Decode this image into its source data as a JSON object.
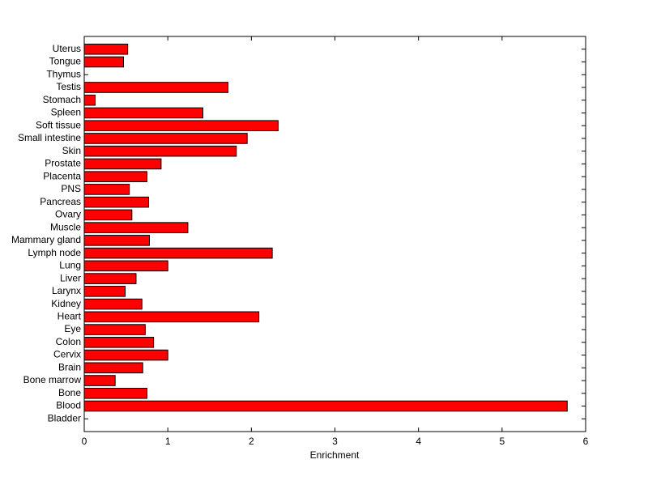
{
  "chart_data": {
    "type": "barh",
    "x_label": "Enrichment",
    "categories": [
      "Bladder",
      "Blood",
      "Bone",
      "Bone marrow",
      "Brain",
      "Cervix",
      "Colon",
      "Eye",
      "Heart",
      "Kidney",
      "Larynx",
      "Liver",
      "Lung",
      "Lymph node",
      "Mammary gland",
      "Muscle",
      "Ovary",
      "Pancreas",
      "PNS",
      "Placenta",
      "Prostate",
      "Skin",
      "Small intestine",
      "Soft tissue",
      "Spleen",
      "Stomach",
      "Testis",
      "Thymus",
      "Tongue",
      "Uterus"
    ],
    "values": [
      0,
      5.78,
      0.75,
      0.37,
      0.7,
      1.0,
      0.83,
      0.73,
      2.09,
      0.69,
      0.49,
      0.62,
      1.0,
      2.25,
      0.78,
      1.24,
      0.57,
      0.77,
      0.54,
      0.75,
      0.92,
      1.82,
      1.95,
      2.32,
      1.42,
      0.13,
      1.72,
      0,
      0.47,
      0.52
    ],
    "color": "#ff0000",
    "xlim": [
      0,
      6
    ],
    "xticks": [
      0,
      1,
      2,
      3,
      4,
      5,
      6
    ],
    "grid": false
  }
}
